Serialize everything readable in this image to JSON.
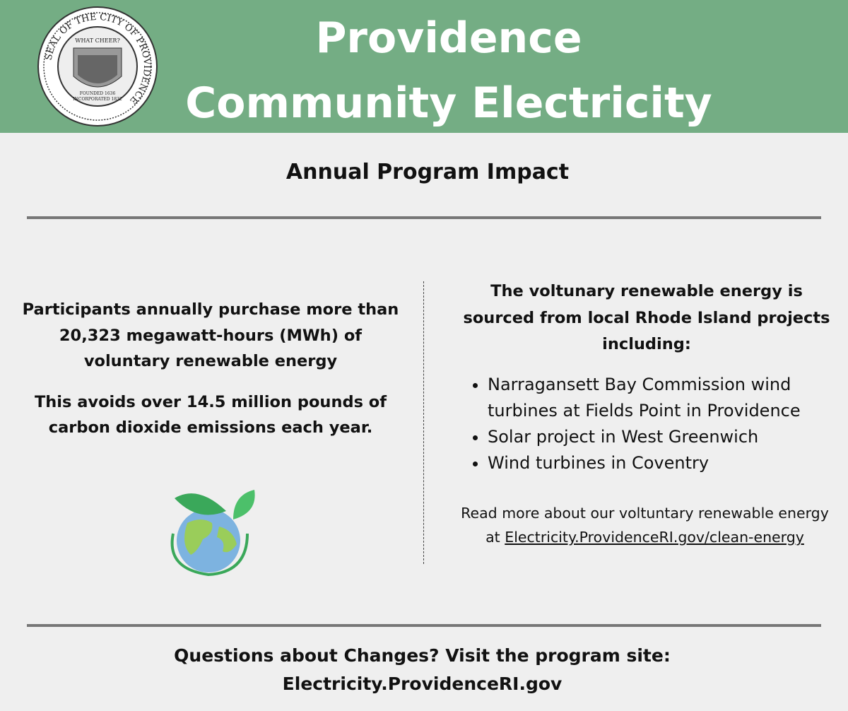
{
  "header": {
    "title_lines": [
      "Providence",
      "Community Electricity"
    ],
    "seal": {
      "ring_text": "SEAL OF THE CITY OF PROVIDENCE",
      "motto": "WHAT CHEER?",
      "founded": "FOUNDED 1636",
      "incorporated": "INCORPORATED 1832"
    }
  },
  "subtitle": "Annual Program Impact",
  "left": {
    "paragraphs": [
      "Participants annually purchase more than 20,323 megawatt-hours (MWh) of voluntary renewable energy",
      "This avoids over 14.5 million pounds of carbon dioxide emissions each year."
    ]
  },
  "right": {
    "heading": "The voltunary renewable energy is sourced from local Rhode Island projects including:",
    "bullets": [
      "Narragansett Bay Commission wind turbines at Fields Point in Providence",
      "Solar project in West Greenwich",
      "Wind turbines in Coventry"
    ],
    "read_more": {
      "text": "Read more about our voltuntary renewable energy at",
      "link": "Electricity.ProvidenceRI.gov/clean-energy"
    }
  },
  "footer": {
    "lines": [
      "Questions about Changes? Visit the program site:",
      "Electricity.ProvidenceRI.gov"
    ]
  }
}
